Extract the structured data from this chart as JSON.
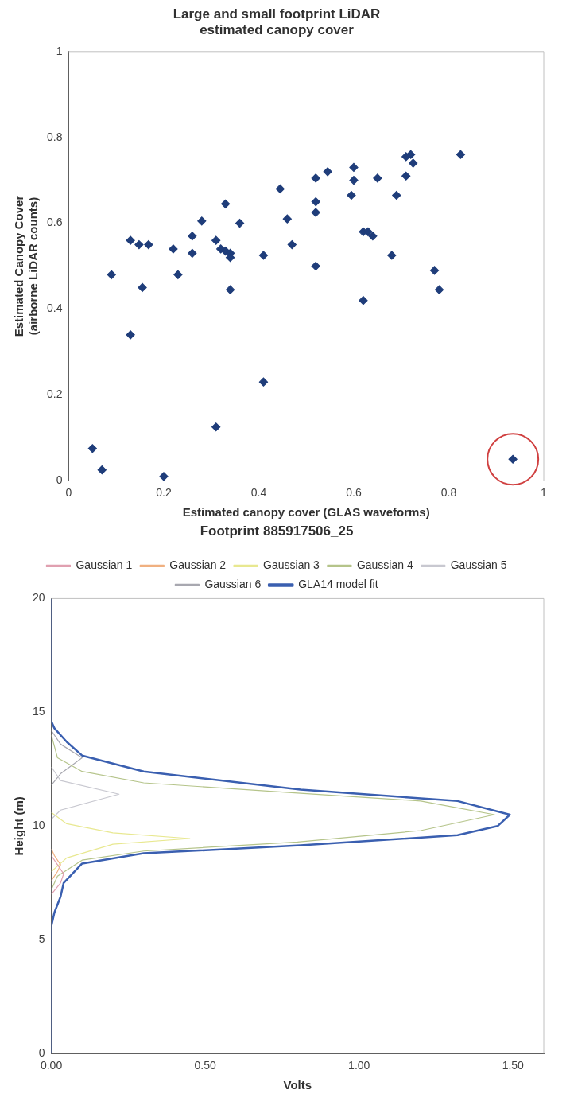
{
  "chart_data": [
    {
      "type": "scatter",
      "title": "Large and small footprint LiDAR estimated canopy cover",
      "xlabel": "Estimated canopy cover (GLAS waveforms)",
      "ylabel": "Estimated Canopy Cover (airborne LiDAR counts)",
      "color": "#1f3d7a",
      "marker": "diamond",
      "grid": false,
      "legend": false,
      "x": [
        0.05,
        0.07,
        0.2,
        0.31,
        0.41,
        0.13,
        0.09,
        0.13,
        0.148,
        0.168,
        0.155,
        0.22,
        0.23,
        0.26,
        0.26,
        0.28,
        0.31,
        0.32,
        0.33,
        0.33,
        0.34,
        0.34,
        0.34,
        0.36,
        0.41,
        0.445,
        0.46,
        0.47,
        0.52,
        0.52,
        0.52,
        0.52,
        0.545,
        0.6,
        0.6,
        0.595,
        0.62,
        0.63,
        0.64,
        0.62,
        0.65,
        0.69,
        0.68,
        0.71,
        0.72,
        0.71,
        0.725,
        0.77,
        0.78,
        0.825,
        0.935
      ],
      "values": [
        0.075,
        0.025,
        0.01,
        0.125,
        0.23,
        0.34,
        0.48,
        0.56,
        0.55,
        0.55,
        0.45,
        0.54,
        0.48,
        0.57,
        0.53,
        0.605,
        0.56,
        0.54,
        0.535,
        0.645,
        0.53,
        0.52,
        0.445,
        0.6,
        0.525,
        0.68,
        0.61,
        0.55,
        0.705,
        0.65,
        0.625,
        0.5,
        0.72,
        0.73,
        0.7,
        0.665,
        0.58,
        0.58,
        0.57,
        0.42,
        0.705,
        0.665,
        0.525,
        0.71,
        0.76,
        0.755,
        0.74,
        0.49,
        0.445,
        0.76,
        0.05
      ],
      "xlim": [
        0,
        1
      ],
      "xticks": [
        0,
        0.2,
        0.4,
        0.6,
        0.8,
        1
      ],
      "ylim": [
        0,
        1
      ],
      "yticks": [
        0,
        0.2,
        0.4,
        0.6,
        0.8,
        1
      ]
    },
    {
      "type": "line",
      "title": "Footprint 885917506_25",
      "xlabel": "Volts",
      "ylabel": "Height (m)",
      "grid": false,
      "legend": "top",
      "marker": "none",
      "line_style": "solid",
      "xlim": [
        0,
        1.6
      ],
      "xticks": [
        {
          "value": 0,
          "label": "0.00"
        },
        {
          "value": 0.5,
          "label": "0.50"
        },
        {
          "value": 1,
          "label": "1.00"
        },
        {
          "value": 1.5,
          "label": "1.50"
        }
      ],
      "ylim": [
        0,
        20
      ],
      "yticks": [
        0,
        5,
        10,
        15,
        20
      ],
      "series": [
        {
          "name": "Gaussian 1",
          "color": "#e0a0b0",
          "x": [
            0,
            0.03,
            0.04,
            0.02,
            0
          ],
          "values": [
            7.0,
            7.5,
            7.9,
            8.3,
            8.7
          ]
        },
        {
          "name": "Gaussian 2",
          "color": "#f0b080",
          "x": [
            0,
            0.02,
            0.03,
            0.01,
            0
          ],
          "values": [
            7.6,
            8.0,
            8.3,
            8.7,
            9.0
          ]
        },
        {
          "name": "Gaussian 3",
          "color": "#e8e890",
          "x": [
            0,
            0.05,
            0.2,
            0.45,
            0.2,
            0.05,
            0
          ],
          "values": [
            8.0,
            8.6,
            9.2,
            9.45,
            9.7,
            10.1,
            10.6
          ]
        },
        {
          "name": "Gaussian 4",
          "color": "#b5c48a",
          "x": [
            0,
            0.02,
            0.1,
            0.3,
            0.8,
            1.2,
            1.44,
            1.2,
            0.8,
            0.3,
            0.1,
            0.02,
            0
          ],
          "values": [
            7.2,
            7.8,
            8.5,
            8.9,
            9.3,
            9.8,
            10.5,
            11.1,
            11.45,
            11.9,
            12.4,
            13.0,
            14.0
          ]
        },
        {
          "name": "Gaussian 5",
          "color": "#c8c8d0",
          "x": [
            0,
            0.03,
            0.22,
            0.03,
            0
          ],
          "values": [
            10.3,
            10.7,
            11.4,
            12.0,
            12.6
          ]
        },
        {
          "name": "Gaussian 6",
          "color": "#a8a8b0",
          "x": [
            0,
            0.03,
            0.1,
            0.03,
            0
          ],
          "values": [
            11.8,
            12.3,
            13.0,
            13.6,
            14.2
          ]
        },
        {
          "name": "GLA14 model fit",
          "color": "#3a5fb0",
          "x": [
            0,
            0,
            0.01,
            0.03,
            0.04,
            0.1,
            0.3,
            0.81,
            1.32,
            1.45,
            1.49,
            1.32,
            0.81,
            0.3,
            0.1,
            0.05,
            0.01,
            0,
            0
          ],
          "values": [
            0,
            5.6,
            6.2,
            6.9,
            7.5,
            8.35,
            8.8,
            9.15,
            9.6,
            10.0,
            10.5,
            11.1,
            11.6,
            12.4,
            13.1,
            13.7,
            14.3,
            14.6,
            20
          ]
        }
      ]
    }
  ]
}
